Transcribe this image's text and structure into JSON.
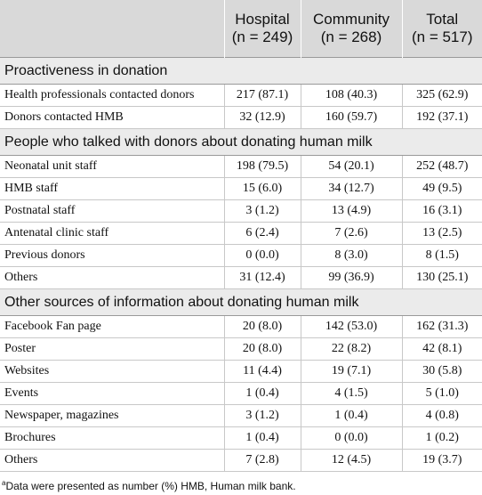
{
  "table": {
    "headers": [
      {
        "name": "Hospital",
        "n": "(n = 249)"
      },
      {
        "name": "Community",
        "n": "(n = 268)"
      },
      {
        "name": "Total",
        "n": "(n = 517)"
      }
    ],
    "sections": [
      {
        "title": "Proactiveness in donation",
        "rows": [
          [
            "Health professionals contacted donors",
            "217 (87.1)",
            "108 (40.3)",
            "325 (62.9)"
          ],
          [
            "Donors contacted HMB",
            "32 (12.9)",
            "160 (59.7)",
            "192 (37.1)"
          ]
        ]
      },
      {
        "title": "People who talked with donors about donating human milk",
        "rows": [
          [
            "Neonatal unit staff",
            "198 (79.5)",
            "54 (20.1)",
            "252 (48.7)"
          ],
          [
            "HMB staff",
            "15 (6.0)",
            "34 (12.7)",
            "49 (9.5)"
          ],
          [
            "Postnatal staff",
            "3 (1.2)",
            "13 (4.9)",
            "16 (3.1)"
          ],
          [
            "Antenatal clinic staff",
            "6 (2.4)",
            "7 (2.6)",
            "13 (2.5)"
          ],
          [
            "Previous donors",
            "0 (0.0)",
            "8 (3.0)",
            "8 (1.5)"
          ],
          [
            "Others",
            "31 (12.4)",
            "99 (36.9)",
            "130 (25.1)"
          ]
        ]
      },
      {
        "title": "Other sources of information about donating human milk",
        "rows": [
          [
            "Facebook Fan page",
            "20 (8.0)",
            "142 (53.0)",
            "162 (31.3)"
          ],
          [
            "Poster",
            "20 (8.0)",
            "22 (8.2)",
            "42 (8.1)"
          ],
          [
            "Websites",
            "11 (4.4)",
            "19 (7.1)",
            "30 (5.8)"
          ],
          [
            "Events",
            "1 (0.4)",
            "4 (1.5)",
            "5 (1.0)"
          ],
          [
            "Newspaper, magazines",
            "3 (1.2)",
            "1 (0.4)",
            "4 (0.8)"
          ],
          [
            "Brochures",
            "1 (0.4)",
            "0 (0.0)",
            "1 (0.2)"
          ],
          [
            "Others",
            "7 (2.8)",
            "12 (4.5)",
            "19 (3.7)"
          ]
        ]
      }
    ]
  },
  "footnote": {
    "marker": "a",
    "text": "Data were presented as number (%) HMB, Human milk bank."
  }
}
